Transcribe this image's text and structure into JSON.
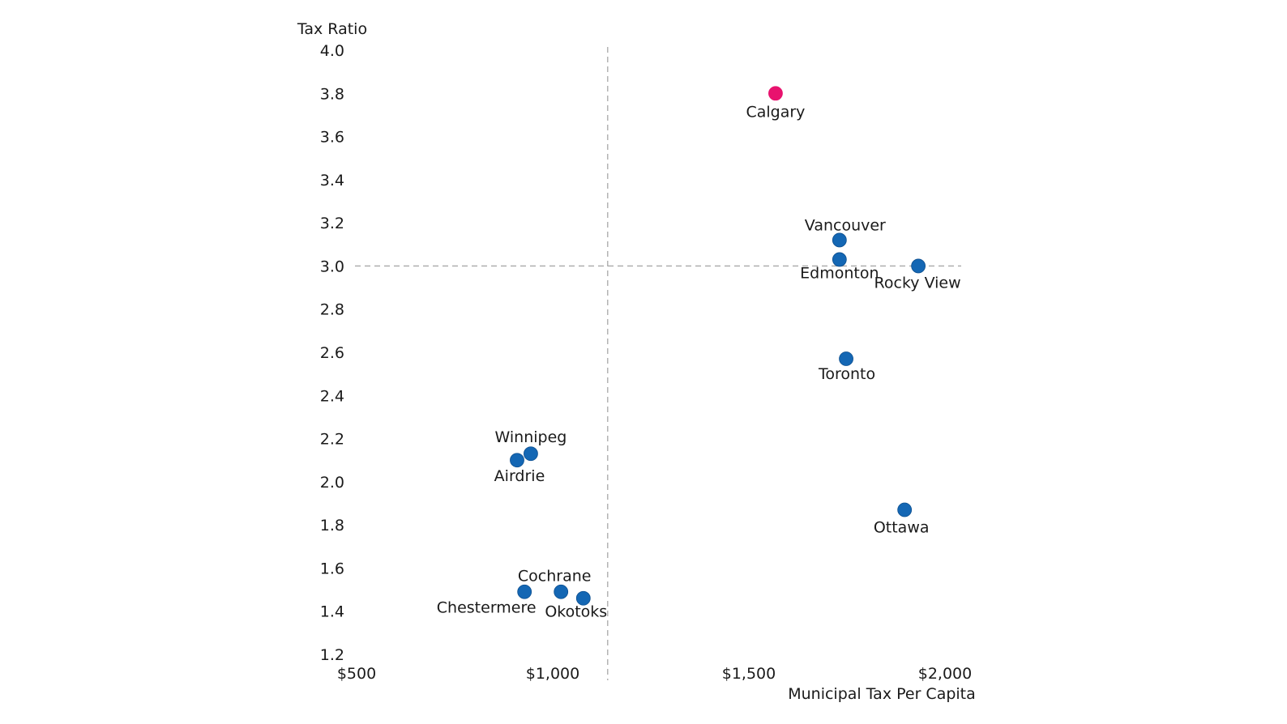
{
  "chart_data": {
    "type": "scatter",
    "title": "",
    "xlabel": "Municipal Tax Per Capita",
    "ylabel": "Tax Ratio",
    "xlim": [
      500,
      2000
    ],
    "ylim": [
      1.2,
      4.0
    ],
    "x_ticks": [
      500,
      1000,
      1500,
      2000
    ],
    "x_tick_labels": [
      "$500",
      "$1,000",
      "$1,500",
      "$2,000"
    ],
    "y_ticks": [
      4.0,
      3.8,
      3.6,
      3.4,
      3.2,
      3.0,
      2.8,
      2.6,
      2.4,
      2.2,
      2.0,
      1.8,
      1.6,
      1.4,
      1.2
    ],
    "y_tick_labels": [
      "4.0",
      "3.8",
      "3.6",
      "3.4",
      "3.2",
      "3.0",
      "2.8",
      "2.6",
      "2.4",
      "2.2",
      "2.0",
      "1.8",
      "1.6",
      "1.4",
      "1.2"
    ],
    "grid": false,
    "reference_lines": [
      {
        "orientation": "vertical",
        "x": 1138
      },
      {
        "orientation": "horizontal",
        "y": 3.0
      }
    ],
    "colors": {
      "default": "#1467b4",
      "highlight": "#e8126e"
    },
    "points": [
      {
        "label": "Calgary",
        "x": 1566,
        "y": 3.8,
        "highlight": true,
        "label_pos": "below"
      },
      {
        "label": "Vancouver",
        "x": 1729,
        "y": 3.12,
        "highlight": false,
        "label_pos": "above"
      },
      {
        "label": "Edmonton",
        "x": 1729,
        "y": 3.03,
        "highlight": false,
        "label_pos": "below"
      },
      {
        "label": "Rocky View",
        "x": 1930,
        "y": 3.0,
        "highlight": false,
        "label_pos": "below"
      },
      {
        "label": "Toronto",
        "x": 1746,
        "y": 2.57,
        "highlight": false,
        "label_pos": "below"
      },
      {
        "label": "Ottawa",
        "x": 1895,
        "y": 1.87,
        "highlight": false,
        "label_pos": "below"
      },
      {
        "label": "Winnipeg",
        "x": 942,
        "y": 2.13,
        "highlight": false,
        "label_pos": "above"
      },
      {
        "label": "Airdrie",
        "x": 907,
        "y": 2.1,
        "highlight": false,
        "label_pos": "below"
      },
      {
        "label": "Cochrane",
        "x": 1019,
        "y": 1.49,
        "highlight": false,
        "label_pos": "above"
      },
      {
        "label": "Chestermere",
        "x": 926,
        "y": 1.49,
        "highlight": false,
        "label_pos": "below-left"
      },
      {
        "label": "Okotoks",
        "x": 1076,
        "y": 1.46,
        "highlight": false,
        "label_pos": "below"
      }
    ]
  }
}
